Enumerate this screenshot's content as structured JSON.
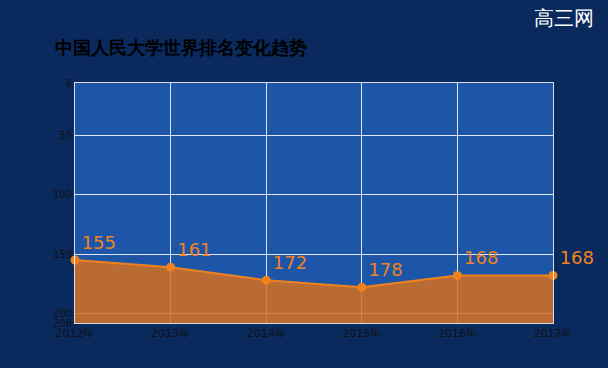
{
  "chart_data": {
    "type": "area",
    "title": "中国人民大学世界排名变化趋势",
    "categories": [
      "2012年",
      "2013年",
      "2014年",
      "2015年",
      "2016年",
      "2017年"
    ],
    "values": [
      155,
      161,
      172,
      178,
      168,
      168
    ],
    "color": "#f0821e",
    "ylim": [
      208,
      6
    ],
    "yticks": [
      6,
      50,
      100,
      150,
      200,
      208
    ],
    "grid": true,
    "data_labels": true,
    "marker": "circle",
    "annotations": [
      "高三网"
    ]
  }
}
